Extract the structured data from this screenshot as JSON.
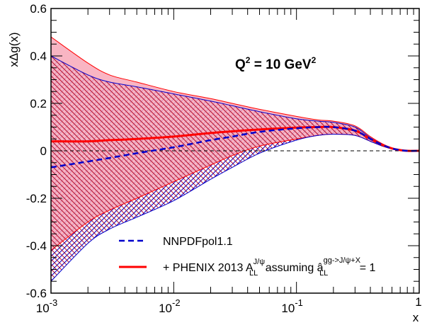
{
  "chart_data": {
    "type": "line",
    "xlabel": "x",
    "ylabel": "xΔg(x)",
    "xscale": "log",
    "xlim": [
      0.001,
      1
    ],
    "ylim": [
      -0.6,
      0.6
    ],
    "x_ticks": [
      {
        "value": 0.001,
        "base": "10",
        "exp": "-3"
      },
      {
        "value": 0.01,
        "base": "10",
        "exp": "-2"
      },
      {
        "value": 0.1,
        "base": "10",
        "exp": "-1"
      },
      {
        "value": 1,
        "base": "",
        "exp": "1"
      }
    ],
    "y_ticks": [
      {
        "value": -0.6,
        "label": "-0.6"
      },
      {
        "value": -0.4,
        "label": "-0.4"
      },
      {
        "value": -0.2,
        "label": "-0.2"
      },
      {
        "value": 0,
        "label": "0"
      },
      {
        "value": 0.2,
        "label": "0.2"
      },
      {
        "value": 0.4,
        "label": "0.4"
      },
      {
        "value": 0.6,
        "label": "0.6"
      }
    ],
    "annotation": {
      "base": "Q",
      "sup1": "2",
      "mid": " = 10 GeV",
      "sup2": "2"
    },
    "x": [
      0.001,
      0.002,
      0.003,
      0.005,
      0.01,
      0.02,
      0.03,
      0.05,
      0.1,
      0.15,
      0.2,
      0.3,
      0.4,
      0.5,
      0.6,
      0.7,
      0.8,
      1.0
    ],
    "series": [
      {
        "name": "NNPDFpol1.1",
        "color": "#0000cc",
        "style": "dashed",
        "central": [
          -0.07,
          -0.045,
          -0.03,
          -0.01,
          0.015,
          0.045,
          0.06,
          0.08,
          0.095,
          0.1,
          0.1,
          0.085,
          0.05,
          0.025,
          0.01,
          0.003,
          0.0,
          0.0
        ],
        "upper": [
          0.4,
          0.32,
          0.29,
          0.27,
          0.24,
          0.21,
          0.19,
          0.165,
          0.135,
          0.125,
          0.12,
          0.1,
          0.055,
          0.028,
          0.012,
          0.004,
          0.001,
          0.0
        ],
        "lower": [
          -0.55,
          -0.39,
          -0.33,
          -0.28,
          -0.21,
          -0.12,
          -0.07,
          -0.01,
          0.045,
          0.065,
          0.07,
          0.065,
          0.04,
          0.02,
          0.008,
          0.002,
          0.0,
          0.0
        ]
      },
      {
        "name": "+ PHENIX 2013",
        "color": "#ff0000",
        "style": "solid",
        "central": [
          0.04,
          0.04,
          0.045,
          0.05,
          0.06,
          0.075,
          0.082,
          0.09,
          0.098,
          0.1,
          0.1,
          0.085,
          0.05,
          0.025,
          0.01,
          0.003,
          0.0,
          0.0
        ],
        "upper": [
          0.48,
          0.37,
          0.32,
          0.29,
          0.25,
          0.22,
          0.2,
          0.175,
          0.145,
          0.13,
          0.125,
          0.105,
          0.06,
          0.03,
          0.013,
          0.004,
          0.001,
          0.0
        ],
        "lower": [
          -0.42,
          -0.3,
          -0.25,
          -0.2,
          -0.13,
          -0.06,
          -0.02,
          0.02,
          0.05,
          0.065,
          0.07,
          0.065,
          0.04,
          0.02,
          0.008,
          0.002,
          0.0,
          0.0
        ]
      }
    ],
    "legend": {
      "position": "bottom-left",
      "entries": [
        {
          "label": "NNPDFpol1.1",
          "color": "#0000cc",
          "style": "dashed"
        },
        {
          "label_prefix": "+ PHENIX 2013 A",
          "label_sub1": "LL",
          "label_sup1": "J/ψ",
          "label_mid": " assuming ",
          "label_hat": "â",
          "label_sub2": "LL",
          "label_sup2": "gg->J/ψ+X",
          "label_suffix": " = 1",
          "color": "#ff0000",
          "style": "solid"
        }
      ]
    },
    "grid": false
  }
}
